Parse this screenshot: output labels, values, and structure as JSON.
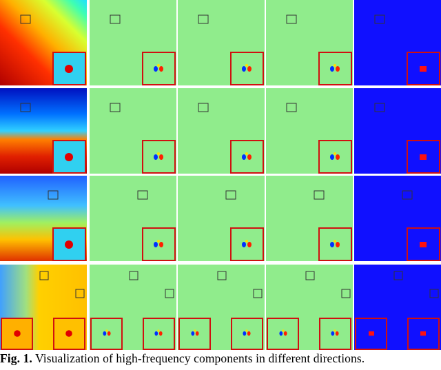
{
  "caption": {
    "label": "Fig. 1.",
    "text": "Visualization of high-frequency components in different directions."
  }
}
